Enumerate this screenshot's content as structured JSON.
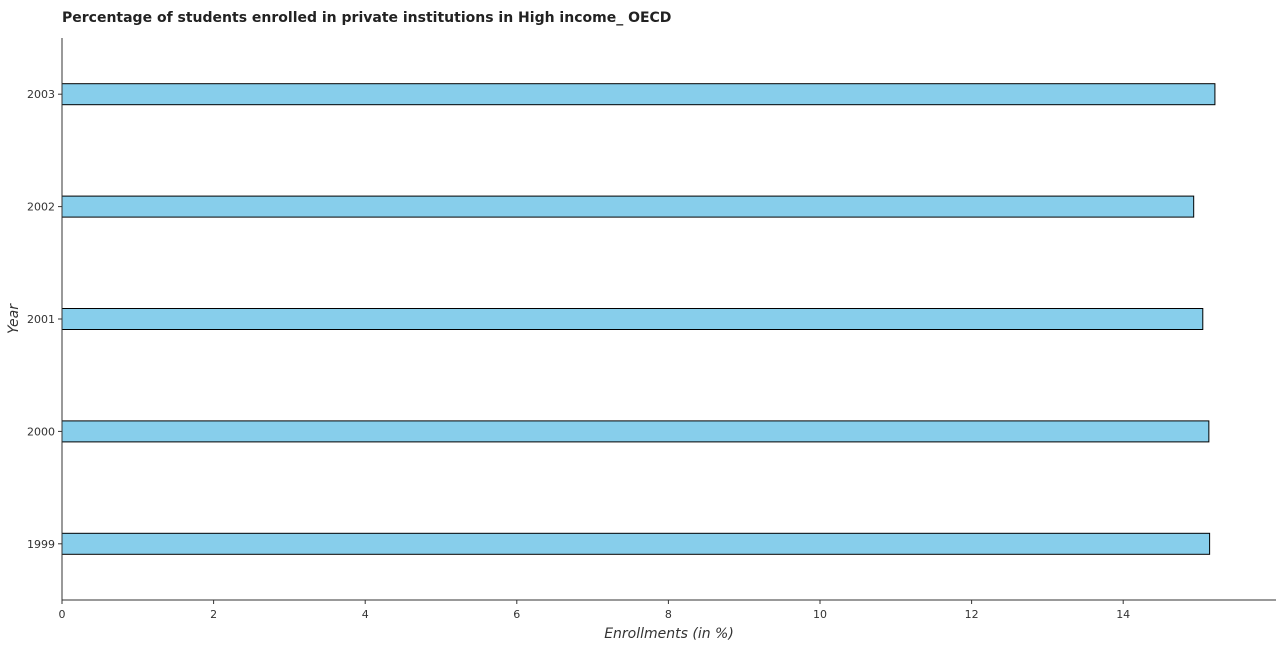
{
  "chart_data": {
    "type": "bar",
    "orientation": "horizontal",
    "title": "Percentage of students enrolled in private institutions in High income_ OECD",
    "xlabel": "Enrollments (in %)",
    "ylabel": "Year",
    "categories": [
      "1999",
      "2000",
      "2001",
      "2002",
      "2003"
    ],
    "values": [
      15.14,
      15.13,
      15.05,
      14.93,
      15.21
    ],
    "xlim": [
      0,
      16
    ],
    "xticks": [
      0,
      2,
      4,
      6,
      8,
      10,
      12,
      14
    ],
    "xtick_labels": [
      "0",
      "2",
      "4",
      "6",
      "8",
      "10",
      "12",
      "14"
    ],
    "grid": false,
    "legend": "none",
    "bar_color": "#87ceeb",
    "bar_edge_color": "#000000"
  }
}
